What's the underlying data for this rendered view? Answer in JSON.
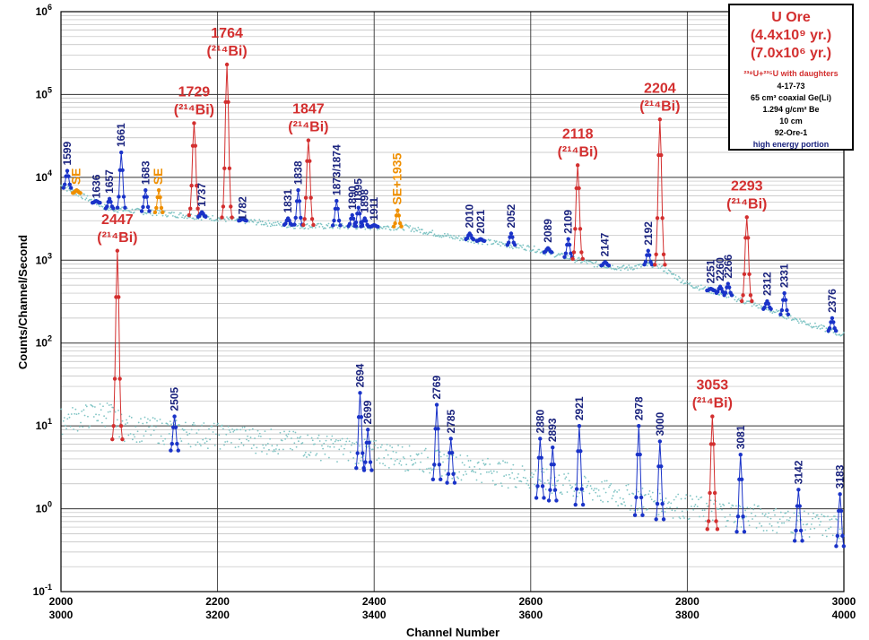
{
  "chart_data": {
    "type": "scatter",
    "xlabel": "Channel Number",
    "ylabel": "Counts/Channel/Second",
    "yscale": "log",
    "ylim_exponents": [
      -1,
      6
    ],
    "y_ticks": [
      {
        "base": "10",
        "exp": "-1"
      },
      {
        "base": "10",
        "exp": "0"
      },
      {
        "base": "10",
        "exp": "1"
      },
      {
        "base": "10",
        "exp": "2"
      },
      {
        "base": "10",
        "exp": "3"
      },
      {
        "base": "10",
        "exp": "4"
      },
      {
        "base": "10",
        "exp": "5"
      },
      {
        "base": "10",
        "exp": "6"
      }
    ],
    "x_ticks_top_row": [
      "2000",
      "2200",
      "2400",
      "2600",
      "2800",
      "3000"
    ],
    "x_ticks_bottom_row": [
      "3000",
      "3200",
      "3400",
      "3600",
      "3800",
      "4000"
    ],
    "xlim_upper": [
      2000,
      3000
    ],
    "xlim_lower": [
      3000,
      4000
    ],
    "grid": true,
    "colors": {
      "background_points": "#7fc4c4",
      "peak": "#1a33c8",
      "bi214": "#d32f2f",
      "escape": "#ef8f00"
    },
    "upper_spectrum_baseline": [
      [
        2000,
        8000
      ],
      [
        2060,
        4200
      ],
      [
        2200,
        3200
      ],
      [
        2300,
        2600
      ],
      [
        2440,
        2500
      ],
      [
        2500,
        1900
      ],
      [
        2600,
        1400
      ],
      [
        2680,
        900
      ],
      [
        2720,
        800
      ],
      [
        2760,
        900
      ],
      [
        2800,
        520
      ],
      [
        2850,
        380
      ],
      [
        2900,
        260
      ],
      [
        2960,
        165
      ],
      [
        3000,
        125
      ]
    ],
    "lower_spectrum_baseline": [
      [
        3000,
        12
      ],
      [
        3060,
        15
      ],
      [
        3080,
        10
      ],
      [
        3200,
        8
      ],
      [
        3400,
        5
      ],
      [
        3550,
        3
      ],
      [
        3700,
        1.6
      ],
      [
        3800,
        1.1
      ],
      [
        3900,
        0.8
      ],
      [
        4000,
        0.6
      ]
    ],
    "peaks_upper": [
      {
        "label": "1599",
        "channel": 2008,
        "height": 12000,
        "kind": "peak"
      },
      {
        "label": "SE",
        "channel": 2020,
        "height": 7000,
        "kind": "escape"
      },
      {
        "label": "1636",
        "channel": 2045,
        "height": 4800,
        "kind": "peak"
      },
      {
        "label": "1657",
        "channel": 2062,
        "height": 5500,
        "kind": "peak"
      },
      {
        "label": "1661",
        "channel": 2077,
        "height": 20000,
        "kind": "peak"
      },
      {
        "label": "1683",
        "channel": 2108,
        "height": 7000,
        "kind": "peak"
      },
      {
        "label": "SE",
        "channel": 2125,
        "height": 7000,
        "kind": "escape"
      },
      {
        "label": "1729",
        "sub": "(²¹⁴Bi)",
        "channel": 2170,
        "height": 45000,
        "kind": "bi214"
      },
      {
        "label": "1737",
        "channel": 2180,
        "height": 3800,
        "kind": "peak"
      },
      {
        "label": "1764",
        "sub": "(²¹⁴Bi)",
        "channel": 2212,
        "height": 230000,
        "kind": "bi214"
      },
      {
        "label": "1782",
        "channel": 2232,
        "height": 2600,
        "kind": "peak"
      },
      {
        "label": "1831",
        "channel": 2290,
        "height": 3200,
        "kind": "peak"
      },
      {
        "label": "1838",
        "channel": 2303,
        "height": 7000,
        "kind": "peak"
      },
      {
        "label": "1847",
        "sub": "(²¹⁴Bi)",
        "channel": 2316,
        "height": 28000,
        "kind": "bi214"
      },
      {
        "label": "1873/1874",
        "channel": 2352,
        "height": 5200,
        "kind": "peak"
      },
      {
        "label": "1890",
        "channel": 2372,
        "height": 3500,
        "kind": "peak"
      },
      {
        "label": "1895",
        "channel": 2380,
        "height": 4300,
        "kind": "peak"
      },
      {
        "label": "1898",
        "channel": 2388,
        "height": 3200,
        "kind": "peak"
      },
      {
        "label": "1911",
        "channel": 2400,
        "height": 2600,
        "kind": "peak"
      },
      {
        "label": "SE+1935",
        "channel": 2430,
        "height": 4000,
        "kind": "escape"
      },
      {
        "label": "2010",
        "channel": 2522,
        "height": 2100,
        "kind": "peak"
      },
      {
        "label": "2021",
        "channel": 2536,
        "height": 1800,
        "kind": "peak"
      },
      {
        "label": "2052",
        "channel": 2575,
        "height": 2100,
        "kind": "peak"
      },
      {
        "label": "2089",
        "channel": 2622,
        "height": 1400,
        "kind": "peak"
      },
      {
        "label": "2109",
        "channel": 2648,
        "height": 1800,
        "kind": "peak"
      },
      {
        "label": "2118",
        "sub": "(²¹⁴Bi)",
        "channel": 2660,
        "height": 14000,
        "kind": "bi214"
      },
      {
        "label": "2147",
        "channel": 2695,
        "height": 950,
        "kind": "peak"
      },
      {
        "label": "2192",
        "channel": 2750,
        "height": 1300,
        "kind": "peak"
      },
      {
        "label": "2204",
        "sub": "(²¹⁴Bi)",
        "channel": 2765,
        "height": 50000,
        "kind": "bi214"
      },
      {
        "label": "2251",
        "channel": 2830,
        "height": 450,
        "kind": "peak"
      },
      {
        "label": "2260",
        "channel": 2842,
        "height": 480,
        "kind": "peak"
      },
      {
        "label": "2266",
        "channel": 2852,
        "height": 520,
        "kind": "peak"
      },
      {
        "label": "2293",
        "sub": "(²¹⁴Bi)",
        "channel": 2876,
        "height": 3300,
        "kind": "bi214"
      },
      {
        "label": "2312",
        "channel": 2902,
        "height": 320,
        "kind": "peak"
      },
      {
        "label": "2331",
        "channel": 2924,
        "height": 400,
        "kind": "peak"
      },
      {
        "label": "2376",
        "channel": 2985,
        "height": 200,
        "kind": "peak"
      }
    ],
    "peaks_lower": [
      {
        "label": "2447",
        "sub": "(²¹⁴Bi)",
        "channel": 3072,
        "height": 1300,
        "kind": "bi214"
      },
      {
        "label": "2505",
        "channel": 3145,
        "height": 13,
        "kind": "peak"
      },
      {
        "label": "2694",
        "channel": 3382,
        "height": 25,
        "kind": "peak"
      },
      {
        "label": "2699",
        "channel": 3392,
        "height": 9,
        "kind": "peak"
      },
      {
        "label": "2769",
        "channel": 3480,
        "height": 18,
        "kind": "peak"
      },
      {
        "label": "2785",
        "channel": 3498,
        "height": 7,
        "kind": "peak"
      },
      {
        "label": "2880",
        "channel": 3612,
        "height": 7,
        "kind": "peak"
      },
      {
        "label": "2893",
        "channel": 3628,
        "height": 5.5,
        "kind": "peak"
      },
      {
        "label": "2921",
        "channel": 3662,
        "height": 10,
        "kind": "peak"
      },
      {
        "label": "2978",
        "channel": 3738,
        "height": 10,
        "kind": "peak"
      },
      {
        "label": "3000",
        "channel": 3765,
        "height": 6.5,
        "kind": "peak"
      },
      {
        "label": "3053",
        "sub": "(²¹⁴Bi)",
        "channel": 3832,
        "height": 13,
        "kind": "bi214"
      },
      {
        "label": "3081",
        "channel": 3868,
        "height": 4.5,
        "kind": "peak"
      },
      {
        "label": "3142",
        "channel": 3942,
        "height": 1.7,
        "kind": "peak"
      },
      {
        "label": "3183",
        "channel": 3995,
        "height": 1.5,
        "kind": "peak"
      }
    ]
  },
  "info_box": {
    "title": "U Ore",
    "age1": "(4.4x10⁹ yr.)",
    "age2": "(7.0x10⁶ yr.)",
    "isotopes": "²³⁸U+²³⁵U with daughters",
    "date": "4-17-73",
    "detector": "65 cm³ coaxial Ge(Li)",
    "absorber": "1.294 g/cm² Be",
    "distance": "10 cm",
    "sample": "92-Ore-1",
    "portion": "high energy portion"
  }
}
